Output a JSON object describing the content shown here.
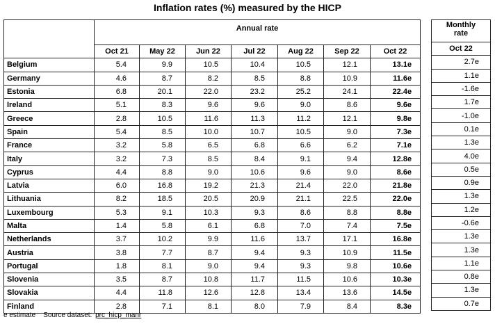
{
  "title": "Inflation rates (%) measured by the HICP",
  "header": {
    "group": "Annual rate",
    "columns": [
      "Oct 21",
      "May 22",
      "Jun 22",
      "Jul 22",
      "Aug 22",
      "Sep 22",
      "Oct 22"
    ],
    "monthly_group": "Monthly rate",
    "monthly_column": "Oct 22"
  },
  "rows": [
    {
      "country": "Belgium",
      "annual": [
        "5.4",
        "9.9",
        "10.5",
        "10.4",
        "10.5",
        "12.1",
        "13.1e"
      ],
      "monthly": "2.7e"
    },
    {
      "country": "Germany",
      "annual": [
        "4.6",
        "8.7",
        "8.2",
        "8.5",
        "8.8",
        "10.9",
        "11.6e"
      ],
      "monthly": "1.1e"
    },
    {
      "country": "Estonia",
      "annual": [
        "6.8",
        "20.1",
        "22.0",
        "23.2",
        "25.2",
        "24.1",
        "22.4e"
      ],
      "monthly": "-1.6e"
    },
    {
      "country": "Ireland",
      "annual": [
        "5.1",
        "8.3",
        "9.6",
        "9.6",
        "9.0",
        "8.6",
        "9.6e"
      ],
      "monthly": "1.7e"
    },
    {
      "country": "Greece",
      "annual": [
        "2.8",
        "10.5",
        "11.6",
        "11.3",
        "11.2",
        "12.1",
        "9.8e"
      ],
      "monthly": "-1.0e"
    },
    {
      "country": "Spain",
      "annual": [
        "5.4",
        "8.5",
        "10.0",
        "10.7",
        "10.5",
        "9.0",
        "7.3e"
      ],
      "monthly": "0.1e"
    },
    {
      "country": "France",
      "annual": [
        "3.2",
        "5.8",
        "6.5",
        "6.8",
        "6.6",
        "6.2",
        "7.1e"
      ],
      "monthly": "1.3e"
    },
    {
      "country": "Italy",
      "annual": [
        "3.2",
        "7.3",
        "8.5",
        "8.4",
        "9.1",
        "9.4",
        "12.8e"
      ],
      "monthly": "4.0e"
    },
    {
      "country": "Cyprus",
      "annual": [
        "4.4",
        "8.8",
        "9.0",
        "10.6",
        "9.6",
        "9.0",
        "8.6e"
      ],
      "monthly": "0.5e"
    },
    {
      "country": "Latvia",
      "annual": [
        "6.0",
        "16.8",
        "19.2",
        "21.3",
        "21.4",
        "22.0",
        "21.8e"
      ],
      "monthly": "0.9e"
    },
    {
      "country": "Lithuania",
      "annual": [
        "8.2",
        "18.5",
        "20.5",
        "20.9",
        "21.1",
        "22.5",
        "22.0e"
      ],
      "monthly": "1.3e"
    },
    {
      "country": "Luxembourg",
      "annual": [
        "5.3",
        "9.1",
        "10.3",
        "9.3",
        "8.6",
        "8.8",
        "8.8e"
      ],
      "monthly": "1.2e"
    },
    {
      "country": "Malta",
      "annual": [
        "1.4",
        "5.8",
        "6.1",
        "6.8",
        "7.0",
        "7.4",
        "7.5e"
      ],
      "monthly": "-0.6e"
    },
    {
      "country": "Netherlands",
      "annual": [
        "3.7",
        "10.2",
        "9.9",
        "11.6",
        "13.7",
        "17.1",
        "16.8e"
      ],
      "monthly": "1.3e"
    },
    {
      "country": "Austria",
      "annual": [
        "3.8",
        "7.7",
        "8.7",
        "9.4",
        "9.3",
        "10.9",
        "11.5e"
      ],
      "monthly": "1.3e"
    },
    {
      "country": "Portugal",
      "annual": [
        "1.8",
        "8.1",
        "9.0",
        "9.4",
        "9.3",
        "9.8",
        "10.6e"
      ],
      "monthly": "1.1e"
    },
    {
      "country": "Slovenia",
      "annual": [
        "3.5",
        "8.7",
        "10.8",
        "11.7",
        "11.5",
        "10.6",
        "10.3e"
      ],
      "monthly": "0.8e"
    },
    {
      "country": "Slovakia",
      "annual": [
        "4.4",
        "11.8",
        "12.6",
        "12.8",
        "13.4",
        "13.6",
        "14.5e"
      ],
      "monthly": "1.3e"
    },
    {
      "country": "Finland",
      "annual": [
        "2.8",
        "7.1",
        "8.1",
        "8.0",
        "7.9",
        "8.4",
        "8.3e"
      ],
      "monthly": "0.7e"
    }
  ],
  "footer": {
    "note": "e estimate",
    "source_label": "Source dataset:",
    "source_link": "prc_hicp_manr"
  }
}
